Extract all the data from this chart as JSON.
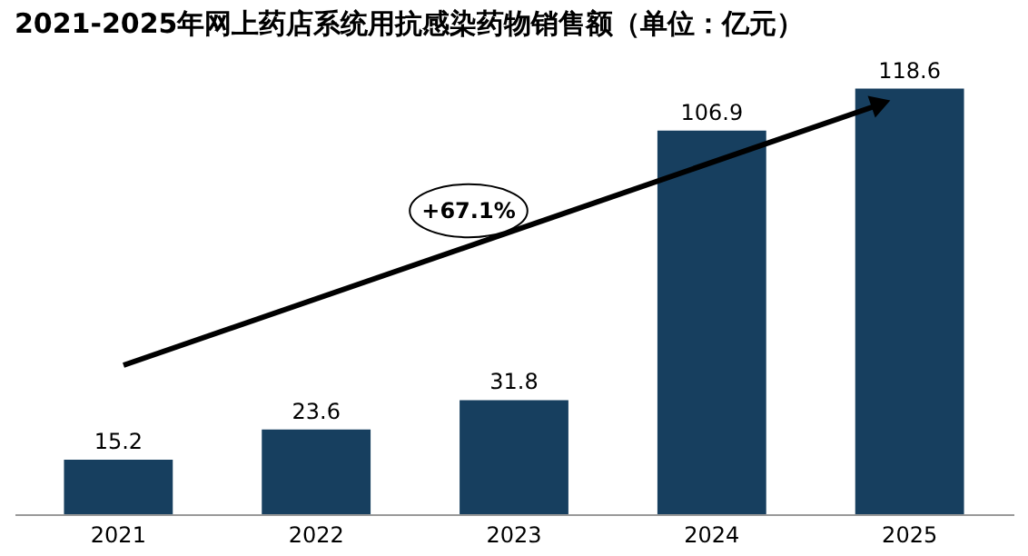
{
  "chart_data": {
    "type": "bar",
    "title": "2021-2025年网上药店系统用抗感染药物销售额（单位：亿元）",
    "categories": [
      "2021",
      "2022",
      "2023",
      "2024",
      "2025"
    ],
    "values": [
      15.2,
      23.6,
      31.8,
      106.9,
      118.6
    ],
    "color": "#173f5f",
    "data_labels": true,
    "annotations": [
      "+67.1%"
    ]
  }
}
